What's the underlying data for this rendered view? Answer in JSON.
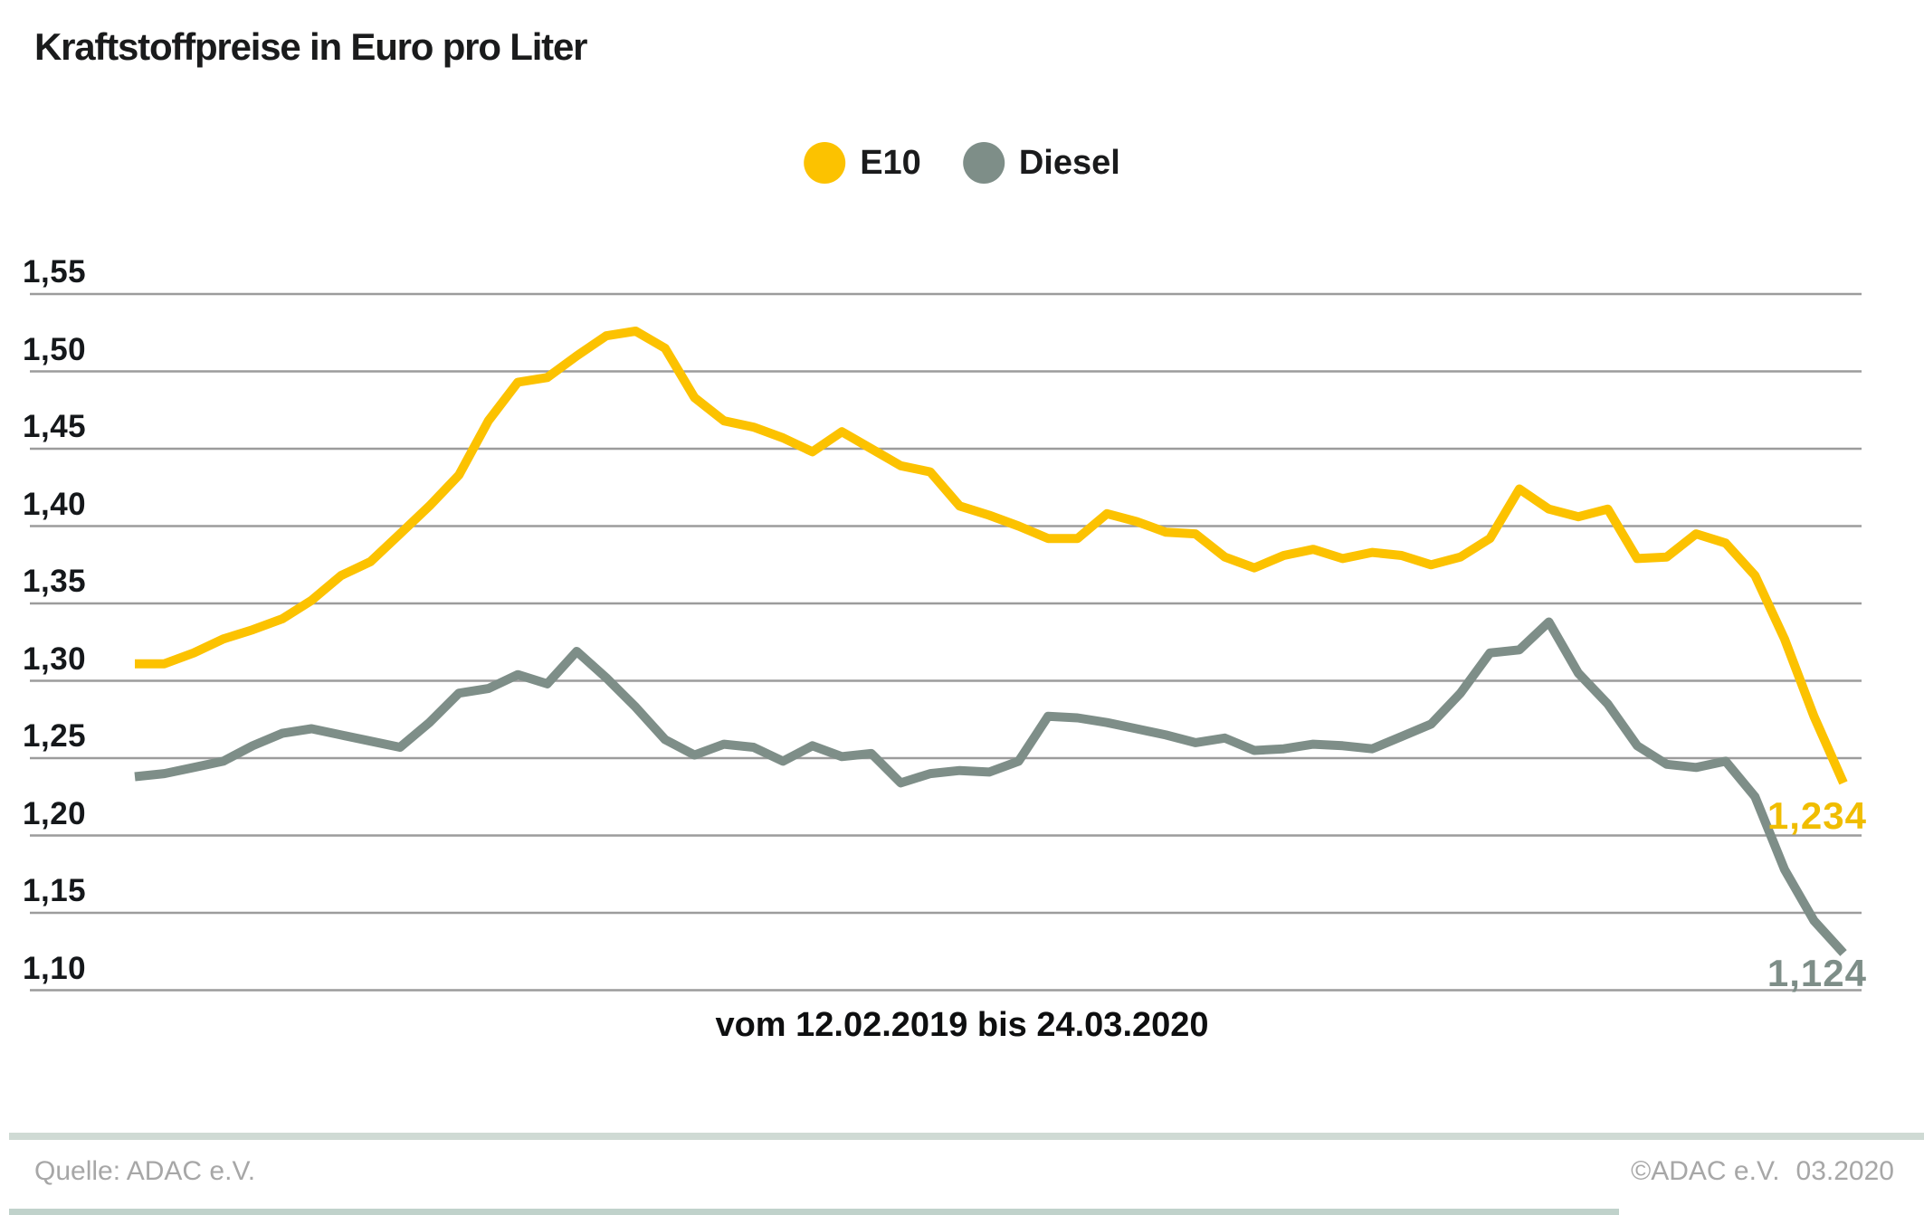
{
  "title": "Kraftstoffpreise in Euro pro Liter",
  "legend": {
    "e10": {
      "label": "E10",
      "color": "#fcc200"
    },
    "diesel": {
      "label": "Diesel",
      "color": "#7e8e88"
    }
  },
  "end_labels": {
    "e10": "1,234",
    "diesel": "1,124"
  },
  "x_caption": "vom 12.02.2019 bis 24.03.2020",
  "footer": {
    "source": "Quelle: ADAC e.V.",
    "copyright": "©ADAC e.V.",
    "date": "03.2020"
  },
  "colors": {
    "e10_line": "#fcc200",
    "diesel_line": "#7e8e88",
    "gridline": "#9c9c9c",
    "end_label_e10": "#f0bd00",
    "end_label_diesel": "#7e8e88"
  },
  "chart_data": {
    "type": "line",
    "title": "Kraftstoffpreise in Euro pro Liter",
    "ylabel": "Euro pro Liter",
    "xlabel": "vom 12.02.2019 bis 24.03.2020",
    "x_start": "12.02.2019",
    "x_end": "24.03.2020",
    "ylim": [
      1.1,
      1.55
    ],
    "grid": true,
    "legend_position": "top-center",
    "y_ticks": [
      "1,55",
      "1,50",
      "1,45",
      "1,40",
      "1,35",
      "1,30",
      "1,25",
      "1,20",
      "1,15",
      "1,10"
    ],
    "series": [
      {
        "name": "E10",
        "color": "#fcc200",
        "last_value_label": "1,234",
        "values": [
          1.311,
          1.311,
          1.318,
          1.327,
          1.333,
          1.34,
          1.352,
          1.368,
          1.377,
          1.395,
          1.413,
          1.433,
          1.468,
          1.493,
          1.496,
          1.51,
          1.523,
          1.526,
          1.515,
          1.483,
          1.468,
          1.464,
          1.457,
          1.448,
          1.461,
          1.45,
          1.439,
          1.435,
          1.413,
          1.407,
          1.4,
          1.392,
          1.392,
          1.408,
          1.403,
          1.396,
          1.395,
          1.38,
          1.373,
          1.381,
          1.385,
          1.379,
          1.383,
          1.381,
          1.375,
          1.38,
          1.392,
          1.424,
          1.411,
          1.406,
          1.411,
          1.379,
          1.38,
          1.395,
          1.389,
          1.368,
          1.327,
          1.277,
          1.234
        ]
      },
      {
        "name": "Diesel",
        "color": "#7e8e88",
        "last_value_label": "1,124",
        "values": [
          1.238,
          1.24,
          1.244,
          1.248,
          1.258,
          1.266,
          1.269,
          1.265,
          1.261,
          1.257,
          1.273,
          1.292,
          1.295,
          1.304,
          1.298,
          1.319,
          1.302,
          1.283,
          1.262,
          1.252,
          1.259,
          1.257,
          1.248,
          1.258,
          1.251,
          1.253,
          1.234,
          1.24,
          1.242,
          1.241,
          1.248,
          1.277,
          1.276,
          1.273,
          1.269,
          1.265,
          1.26,
          1.263,
          1.255,
          1.256,
          1.259,
          1.258,
          1.256,
          1.264,
          1.272,
          1.292,
          1.318,
          1.32,
          1.338,
          1.305,
          1.285,
          1.258,
          1.246,
          1.244,
          1.248,
          1.225,
          1.178,
          1.145,
          1.124
        ]
      }
    ]
  }
}
